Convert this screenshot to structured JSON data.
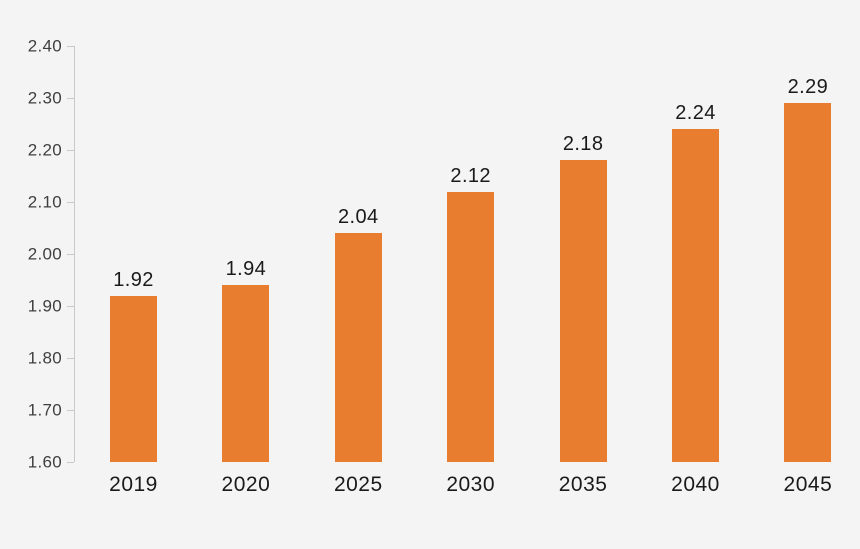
{
  "chart_data": {
    "type": "bar",
    "title": "",
    "xlabel": "",
    "ylabel": "",
    "categories": [
      "2019",
      "2020",
      "2025",
      "2030",
      "2035",
      "2040",
      "2045"
    ],
    "values": [
      1.92,
      1.94,
      2.04,
      2.12,
      2.18,
      2.24,
      2.29
    ],
    "value_labels": [
      "1.92",
      "1.94",
      "2.04",
      "2.12",
      "2.18",
      "2.24",
      "2.29"
    ],
    "ylim": [
      1.6,
      2.4
    ],
    "y_tick_step": 0.1,
    "y_tick_labels": [
      "2.40",
      "2.30",
      "2.20",
      "2.10",
      "2.00",
      "1.90",
      "1.80",
      "1.70",
      "1.60"
    ],
    "y_tick_values": [
      2.4,
      2.3,
      2.2,
      2.1,
      2.0,
      1.9,
      1.8,
      1.7,
      1.6
    ],
    "grid": "off",
    "legend": "none",
    "bar_color": "#e87d2f",
    "background_color": "#f4f4f5",
    "axis_color": "#c9c9c9",
    "tick_label_color": "#3f3f3f",
    "data_label_color": "#1a1a1a"
  }
}
